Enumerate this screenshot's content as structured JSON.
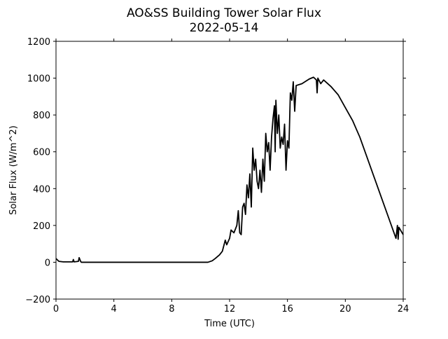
{
  "chart_data": {
    "type": "line",
    "title": "AO&SS Building Tower Solar Flux",
    "subtitle": "2022-05-14",
    "x_label": "Time (UTC)",
    "y_label": "Solar Flux (W/m^2)",
    "color": "#000000",
    "xlim": [
      0,
      24
    ],
    "xticks": [
      0,
      4,
      8,
      12,
      16,
      20,
      24
    ],
    "ylim": [
      -200,
      1200
    ],
    "yticks": [
      {
        "value": -200,
        "label": "−200"
      },
      0,
      200,
      400,
      600,
      800,
      1000,
      1200
    ],
    "x": [
      0,
      0.2,
      0.5,
      1.15,
      1.2,
      1.25,
      1.55,
      1.6,
      1.7,
      1.75,
      3,
      6,
      10.5,
      10.8,
      11,
      11.3,
      11.5,
      11.7,
      11.8,
      12,
      12.1,
      12.3,
      12.5,
      12.6,
      12.7,
      12.8,
      12.9,
      13,
      13.1,
      13.2,
      13.3,
      13.4,
      13.5,
      13.6,
      13.7,
      13.8,
      13.9,
      14,
      14.1,
      14.2,
      14.3,
      14.4,
      14.5,
      14.6,
      14.7,
      14.8,
      14.9,
      15,
      15.1,
      15.15,
      15.2,
      15.3,
      15.4,
      15.5,
      15.6,
      15.7,
      15.8,
      15.9,
      16,
      16.1,
      16.2,
      16.3,
      16.4,
      16.5,
      16.6,
      17,
      17.5,
      17.8,
      18,
      18.05,
      18.1,
      18.3,
      18.5,
      19,
      19.5,
      20,
      20.5,
      21,
      21.5,
      22,
      22.5,
      23,
      23.5,
      23.6,
      23.65,
      23.7,
      24
    ],
    "values": [
      20,
      5,
      2,
      2,
      15,
      2,
      5,
      25,
      5,
      0,
      0,
      0,
      0,
      8,
      20,
      40,
      60,
      120,
      95,
      130,
      175,
      160,
      200,
      280,
      160,
      150,
      300,
      320,
      260,
      420,
      350,
      480,
      300,
      620,
      500,
      560,
      440,
      400,
      500,
      380,
      560,
      440,
      700,
      600,
      650,
      500,
      680,
      780,
      850,
      600,
      880,
      700,
      800,
      620,
      680,
      640,
      750,
      500,
      660,
      620,
      920,
      880,
      980,
      820,
      960,
      970,
      995,
      1005,
      990,
      920,
      1000,
      970,
      990,
      955,
      910,
      840,
      770,
      680,
      570,
      460,
      350,
      240,
      130,
      200,
      125,
      190,
      150
    ]
  }
}
